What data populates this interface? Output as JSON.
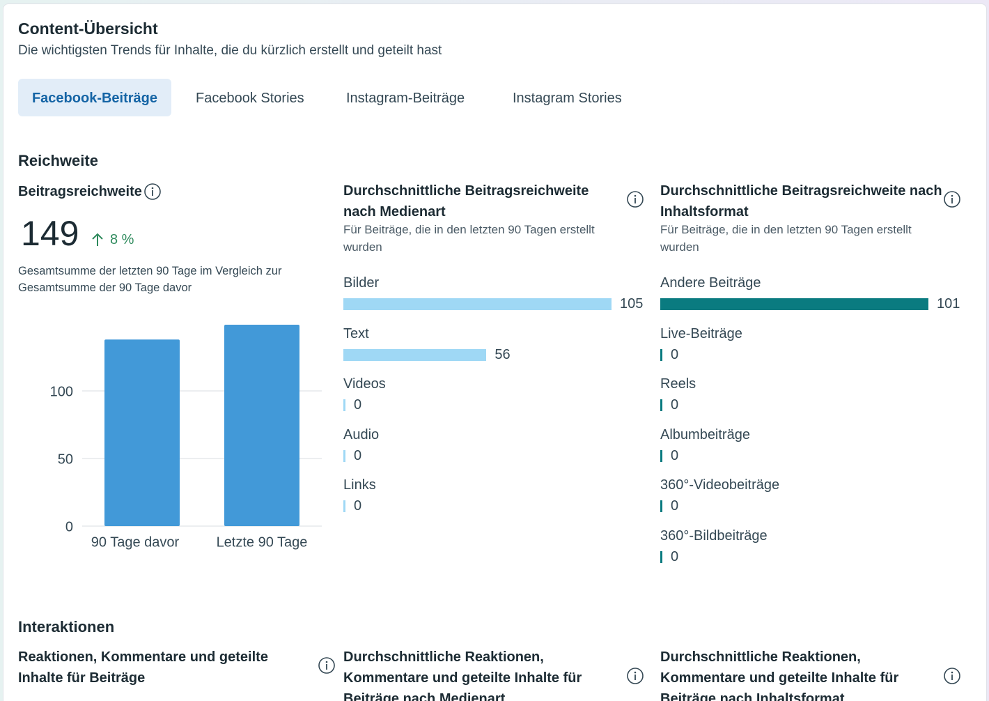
{
  "header": {
    "title": "Content-Übersicht",
    "subtitle": "Die wichtigsten Trends für Inhalte, die du kürzlich erstellt und geteilt hast"
  },
  "tabs": [
    "Facebook-Beiträge",
    "Facebook Stories",
    "Instagram-Beiträge",
    "Instagram Stories"
  ],
  "active_tab": 0,
  "reach": {
    "title": "Reichweite",
    "total": {
      "label": "Beitragsreichweite",
      "value": 149,
      "change": "8 %",
      "note": "Gesamtsumme der letzten 90 Tage im Vergleich zur Gesamtsumme der 90 Tage davor"
    },
    "chart_data": {
      "type": "bar",
      "categories": [
        "90 Tage davor",
        "Letzte 90 Tage"
      ],
      "values": [
        138,
        149
      ],
      "color": "#4299d8",
      "ylim": [
        0,
        150
      ],
      "yticks": [
        0,
        50,
        100
      ],
      "grid": true
    },
    "by_media": {
      "type": "bar",
      "title": "Durchschnittliche Beitragsreichweite nach Medienart",
      "subtitle": "Für Beiträge, die in den letzten 90 Tagen erstellt wurden",
      "categories": [
        "Bilder",
        "Text",
        "Videos",
        "Audio",
        "Links"
      ],
      "values": [
        105,
        56,
        0,
        0,
        0
      ],
      "color": "#9fd8f5"
    },
    "by_format": {
      "type": "bar",
      "title": "Durchschnittliche Beitragsreichweite nach Inhaltsformat",
      "subtitle": "Für Beiträge, die in den letzten 90 Tagen erstellt wurden",
      "categories": [
        "Andere Beiträge",
        "Live-Beiträge",
        "Reels",
        "Albumbeiträge",
        "360°-Videobeiträge",
        "360°-Bildbeiträge"
      ],
      "values": [
        101,
        0,
        0,
        0,
        0,
        0
      ],
      "color": "#0a7b80"
    }
  },
  "interactions": {
    "title": "Interaktionen",
    "cards": [
      "Reaktionen, Kommentare und geteilte Inhalte für Beiträge",
      "Durchschnittliche Reaktionen, Kommentare und geteilte Inhalte für Beiträge nach Medienart",
      "Durchschnittliche Reaktionen, Kommentare und geteilte Inhalte für Beiträge nach Inhaltsformat"
    ]
  }
}
